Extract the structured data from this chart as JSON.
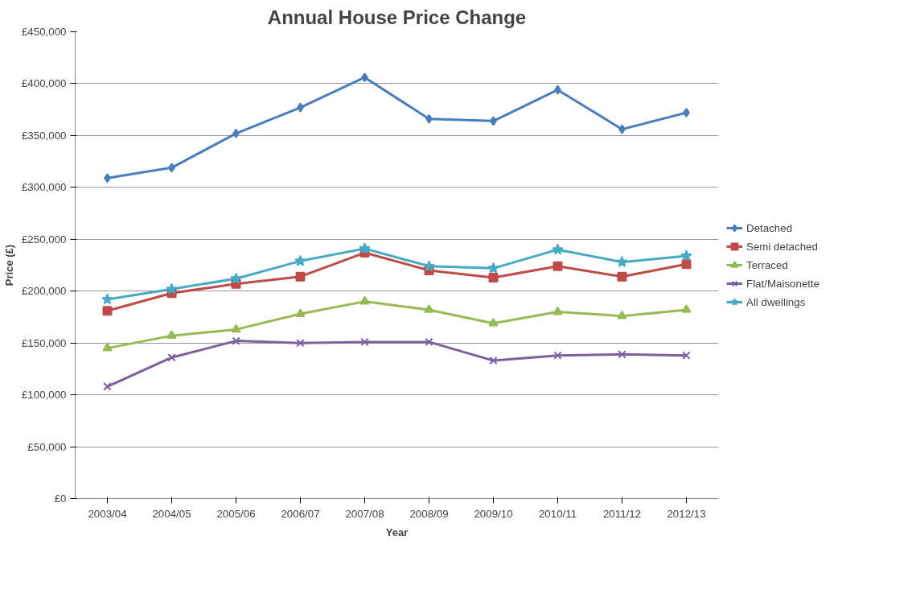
{
  "chart_data": {
    "type": "line",
    "title": "Annual House Price Change",
    "xlabel": "Year",
    "ylabel": "Price (£)",
    "categories": [
      "2003/04",
      "2004/05",
      "2005/06",
      "2006/07",
      "2007/08",
      "2008/09",
      "2009/10",
      "2010/11",
      "2011/12",
      "2012/13"
    ],
    "series": [
      {
        "name": "Detached",
        "color": "#4a7ebb",
        "marker": "diamond",
        "values": [
          309000,
          319000,
          352000,
          377000,
          406000,
          366000,
          364000,
          394000,
          356000,
          372000
        ]
      },
      {
        "name": "Semi detached",
        "color": "#be4b48",
        "marker": "square",
        "values": [
          181000,
          198000,
          207000,
          214000,
          237000,
          220000,
          213000,
          224000,
          214000,
          226000
        ]
      },
      {
        "name": "Terraced",
        "color": "#98b954",
        "marker": "triangle",
        "values": [
          145000,
          157000,
          163000,
          178000,
          190000,
          182000,
          169000,
          180000,
          176000,
          182000
        ]
      },
      {
        "name": "Flat/Maisonette",
        "color": "#7d60a0",
        "marker": "cross",
        "values": [
          108000,
          136000,
          152000,
          150000,
          151000,
          151000,
          133000,
          138000,
          139000,
          138000
        ]
      },
      {
        "name": "All dwellings",
        "color": "#46aac5",
        "marker": "star",
        "values": [
          192000,
          202000,
          212000,
          229000,
          241000,
          224000,
          222000,
          240000,
          228000,
          234000
        ]
      }
    ],
    "ylim": [
      0,
      450000
    ],
    "yticks": [
      {
        "value": 0,
        "label": "£0"
      },
      {
        "value": 50000,
        "label": "£50,000"
      },
      {
        "value": 100000,
        "label": "£100,000"
      },
      {
        "value": 150000,
        "label": "£150,000"
      },
      {
        "value": 200000,
        "label": "£200,000"
      },
      {
        "value": 250000,
        "label": "£250,000"
      },
      {
        "value": 300000,
        "label": "£300,000"
      },
      {
        "value": 350000,
        "label": "£350,000"
      },
      {
        "value": 400000,
        "label": "£400,000"
      },
      {
        "value": 450000,
        "label": "£450,000"
      }
    ],
    "grid": "y",
    "legend": "right",
    "line_style": "solid"
  }
}
